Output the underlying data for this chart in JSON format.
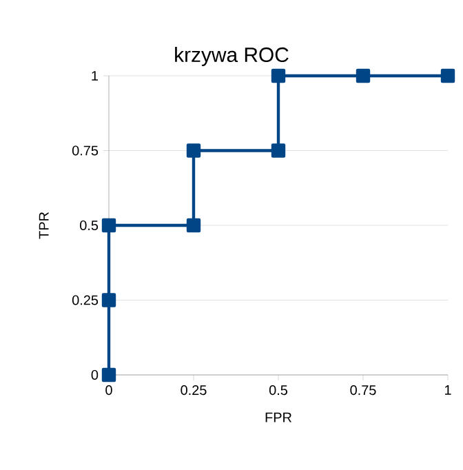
{
  "chart_data": {
    "type": "line",
    "title": "krzywa ROC",
    "xlabel": "FPR",
    "ylabel": "TPR",
    "x": [
      0,
      0,
      0,
      0.25,
      0.25,
      0.5,
      0.5,
      0.75,
      1
    ],
    "series": [
      {
        "color": "#004586",
        "values": [
          0,
          0.25,
          0.5,
          0.5,
          0.75,
          0.75,
          1,
          1,
          1
        ]
      }
    ],
    "xlim": [
      0,
      1
    ],
    "ylim": [
      0,
      1
    ],
    "xticks": [
      0,
      0.25,
      0.5,
      0.75,
      1
    ],
    "yticks": [
      0,
      0.25,
      0.5,
      0.75,
      1
    ],
    "grid": "y",
    "marker": "square",
    "line_style": "solid"
  }
}
